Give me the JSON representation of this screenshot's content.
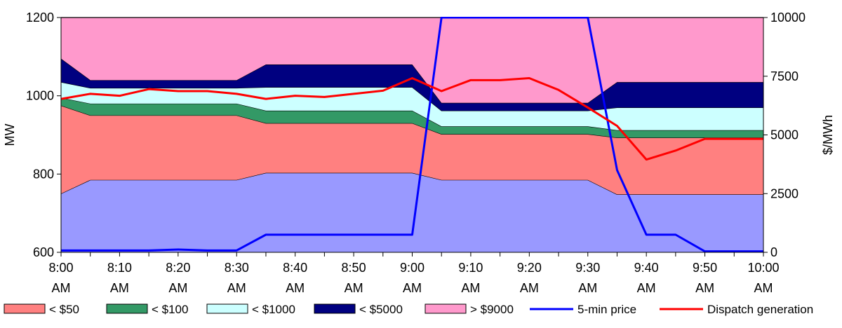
{
  "chart_data": {
    "type": "area",
    "x": [
      "8:00 AM",
      "8:05 AM",
      "8:10 AM",
      "8:15 AM",
      "8:20 AM",
      "8:25 AM",
      "8:30 AM",
      "8:35 AM",
      "8:40 AM",
      "8:45 AM",
      "8:50 AM",
      "8:55 AM",
      "9:00 AM",
      "9:05 AM",
      "9:10 AM",
      "9:15 AM",
      "9:20 AM",
      "9:25 AM",
      "9:30 AM",
      "9:35 AM",
      "9:40 AM",
      "9:45 AM",
      "9:50 AM",
      "9:55 AM",
      "10:00 AM"
    ],
    "x_tick_labels": [
      {
        "line1": "8:00",
        "line2": "AM"
      },
      {
        "line1": "8:10",
        "line2": "AM"
      },
      {
        "line1": "8:20",
        "line2": "AM"
      },
      {
        "line1": "8:30",
        "line2": "AM"
      },
      {
        "line1": "8:40",
        "line2": "AM"
      },
      {
        "line1": "8:50",
        "line2": "AM"
      },
      {
        "line1": "9:00",
        "line2": "AM"
      },
      {
        "line1": "9:10",
        "line2": "AM"
      },
      {
        "line1": "9:20",
        "line2": "AM"
      },
      {
        "line1": "9:30",
        "line2": "AM"
      },
      {
        "line1": "9:40",
        "line2": "AM"
      },
      {
        "line1": "9:50",
        "line2": "AM"
      },
      {
        "line1": "10:00",
        "line2": "AM"
      }
    ],
    "ylabel_left": "MW",
    "ylabel_right": "$/MWh",
    "ylim_left": [
      600,
      1200
    ],
    "ylim_right": [
      0,
      10000
    ],
    "yticks_left": [
      "600",
      "800",
      "1000",
      "1200"
    ],
    "yticks_right": [
      "0",
      "2500",
      "5000",
      "7500",
      "10000"
    ],
    "stack_base_mw": 600,
    "stacked_series": [
      {
        "name": "",
        "color": "#9999ff",
        "cumulative": [
          750,
          785,
          785,
          785,
          785,
          785,
          785,
          803,
          803,
          803,
          803,
          803,
          803,
          785,
          785,
          785,
          785,
          785,
          785,
          748,
          748,
          748,
          748,
          748,
          748
        ]
      },
      {
        "name": "< $50",
        "color": "#ff8080",
        "cumulative": [
          975,
          950,
          950,
          950,
          950,
          950,
          950,
          930,
          930,
          930,
          930,
          930,
          930,
          902,
          902,
          902,
          902,
          902,
          902,
          893,
          893,
          893,
          893,
          893,
          893
        ]
      },
      {
        "name": "< $100",
        "color": "#339966",
        "cumulative": [
          995,
          980,
          980,
          980,
          980,
          980,
          980,
          962,
          962,
          962,
          962,
          962,
          962,
          922,
          922,
          922,
          922,
          922,
          922,
          912,
          912,
          912,
          912,
          912,
          912
        ]
      },
      {
        "name": "< $1000",
        "color": "#ccffff",
        "cumulative": [
          1035,
          1020,
          1020,
          1020,
          1020,
          1020,
          1020,
          1022,
          1022,
          1022,
          1022,
          1022,
          1022,
          962,
          962,
          962,
          962,
          962,
          962,
          970,
          970,
          970,
          970,
          970,
          970
        ]
      },
      {
        "name": "< $5000",
        "color": "#000080",
        "cumulative": [
          1095,
          1040,
          1040,
          1040,
          1040,
          1040,
          1040,
          1080,
          1080,
          1080,
          1080,
          1080,
          1080,
          982,
          982,
          982,
          982,
          982,
          982,
          1035,
          1035,
          1035,
          1035,
          1035,
          1035
        ]
      },
      {
        "name": "> $9000",
        "color": "#ff99cc",
        "cumulative": [
          1200,
          1200,
          1200,
          1200,
          1200,
          1200,
          1200,
          1200,
          1200,
          1200,
          1200,
          1200,
          1200,
          1200,
          1200,
          1200,
          1200,
          1200,
          1200,
          1200,
          1200,
          1200,
          1200,
          1200,
          1200
        ]
      }
    ],
    "line_series": [
      {
        "name": "5-min price",
        "color": "#0000ff",
        "axis": "right",
        "values": [
          80,
          80,
          80,
          80,
          120,
          80,
          80,
          750,
          750,
          750,
          750,
          750,
          750,
          10000,
          10000,
          10000,
          10000,
          10000,
          10000,
          3500,
          750,
          750,
          40,
          40,
          40
        ]
      },
      {
        "name": "Dispatch generation",
        "color": "#ff0000",
        "axis": "left",
        "values": [
          992,
          1005,
          1000,
          1017,
          1012,
          1012,
          1005,
          992,
          1000,
          997,
          1005,
          1013,
          1045,
          1012,
          1040,
          1040,
          1045,
          1015,
          970,
          923,
          837,
          860,
          890,
          890,
          890
        ]
      }
    ],
    "legend": {
      "position": "bottom",
      "entries": [
        {
          "label": "< $50",
          "kind": "box",
          "color": "#ff8080"
        },
        {
          "label": "< $100",
          "kind": "box",
          "color": "#339966"
        },
        {
          "label": "< $1000",
          "kind": "box",
          "color": "#ccffff"
        },
        {
          "label": "< $5000",
          "kind": "box",
          "color": "#000080"
        },
        {
          "label": "> $9000",
          "kind": "box",
          "color": "#ff99cc"
        },
        {
          "label": "5-min price",
          "kind": "line",
          "color": "#0000ff"
        },
        {
          "label": "Dispatch generation",
          "kind": "line",
          "color": "#ff0000"
        }
      ]
    },
    "grid": false
  }
}
